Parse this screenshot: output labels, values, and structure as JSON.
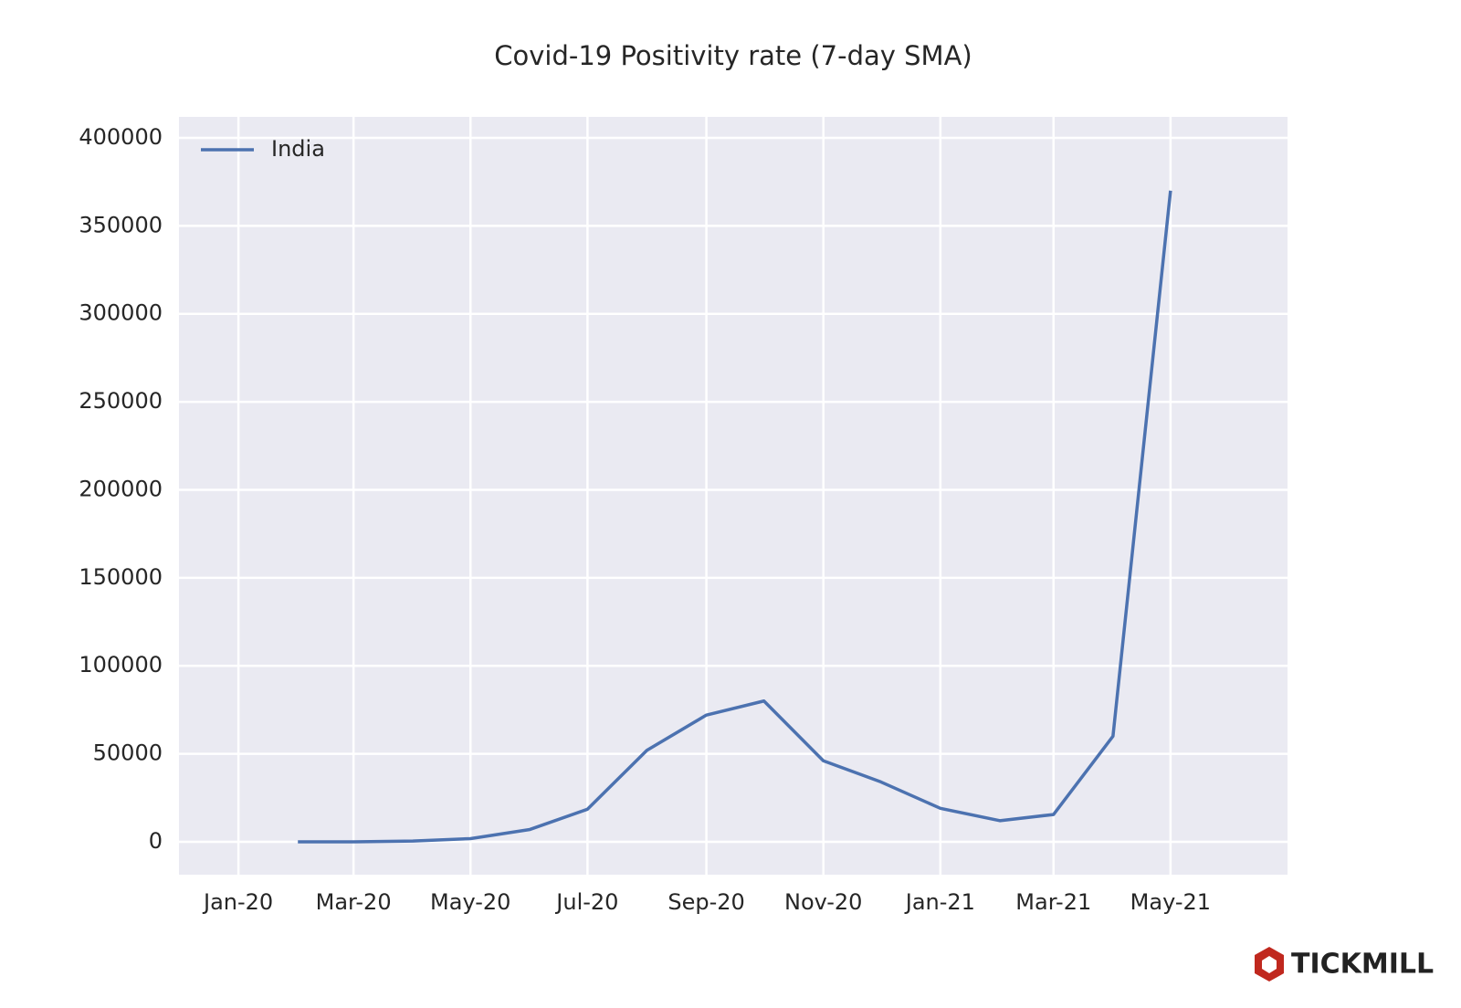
{
  "chart_data": {
    "type": "line",
    "title": "Covid-19 Positivity rate (7-day SMA)",
    "x": [
      "2020-02",
      "2020-03",
      "2020-04",
      "2020-05",
      "2020-06",
      "2020-07",
      "2020-08",
      "2020-09",
      "2020-10",
      "2020-11",
      "2020-12",
      "2021-01",
      "2021-02",
      "2021-03",
      "2021-04",
      "2021-05"
    ],
    "series": [
      {
        "name": "India",
        "color": "#4c72b0",
        "values": [
          0,
          0,
          400,
          1800,
          7000,
          18500,
          52000,
          72000,
          80000,
          46000,
          34000,
          19000,
          12000,
          15500,
          60000,
          370000
        ]
      }
    ],
    "xlim": [
      "2019-12",
      "2021-07"
    ],
    "xticks": [
      {
        "value": "2020-01",
        "label": "Jan-20"
      },
      {
        "value": "2020-03",
        "label": "Mar-20"
      },
      {
        "value": "2020-05",
        "label": "May-20"
      },
      {
        "value": "2020-07",
        "label": "Jul-20"
      },
      {
        "value": "2020-09",
        "label": "Sep-20"
      },
      {
        "value": "2020-11",
        "label": "Nov-20"
      },
      {
        "value": "2021-01",
        "label": "Jan-21"
      },
      {
        "value": "2021-03",
        "label": "Mar-21"
      },
      {
        "value": "2021-05",
        "label": "May-21"
      }
    ],
    "ylim": [
      -18700,
      411900
    ],
    "yticks": [
      0,
      50000,
      100000,
      150000,
      200000,
      250000,
      300000,
      350000,
      400000
    ],
    "grid": true,
    "legend": "upper left",
    "watermark": "TICKMILL"
  }
}
